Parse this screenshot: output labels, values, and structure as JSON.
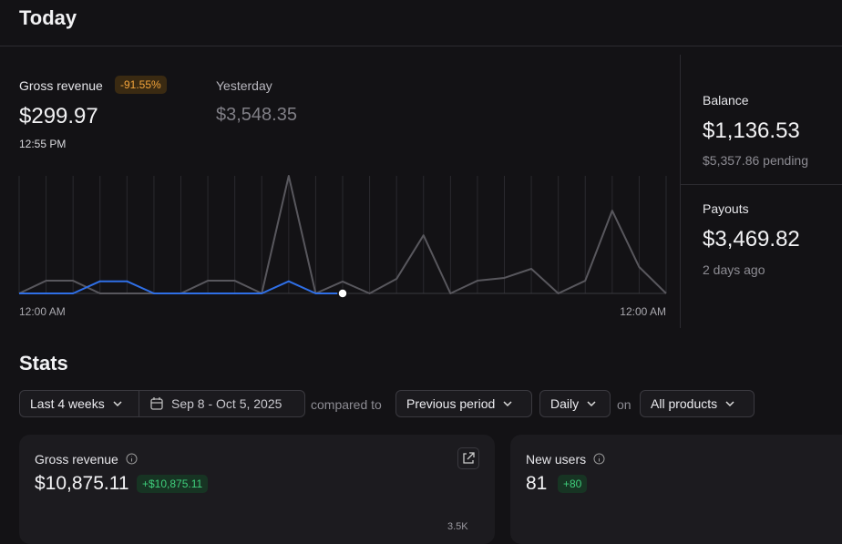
{
  "header": {
    "title": "Today"
  },
  "gross_revenue": {
    "label": "Gross revenue",
    "change": "-91.55%",
    "value": "$299.97",
    "time": "12:55 PM"
  },
  "yesterday": {
    "label": "Yesterday",
    "value": "$3,548.35"
  },
  "balance": {
    "label": "Balance",
    "value": "$1,136.53",
    "pending": "$5,357.86 pending"
  },
  "payouts": {
    "label": "Payouts",
    "value": "$3,469.82",
    "when": "2 days ago"
  },
  "chart_data": {
    "type": "line",
    "categories": [
      "12:00 AM",
      null,
      null,
      null,
      null,
      null,
      null,
      null,
      null,
      null,
      null,
      null,
      null,
      null,
      null,
      null,
      null,
      null,
      null,
      null,
      null,
      null,
      null,
      null,
      "12:00 AM"
    ],
    "series": [
      {
        "color": "#2f6fe6",
        "values": [
          0,
          0,
          0,
          100,
          100,
          0,
          0,
          0,
          0,
          0,
          100,
          0,
          0,
          null,
          null,
          null,
          null,
          null,
          null,
          null,
          null,
          null,
          null,
          null,
          null
        ]
      },
      {
        "color": "#58575d",
        "values": [
          0,
          105,
          105,
          0,
          0,
          0,
          0,
          105,
          105,
          0,
          970,
          0,
          98,
          0,
          120,
          480,
          0,
          105,
          128,
          203,
          0,
          105,
          683,
          218,
          0
        ]
      }
    ],
    "ylim": [
      0,
      970
    ]
  },
  "stats": {
    "title": "Stats",
    "filters": {
      "range": "Last 4 weeks",
      "dates": "Sep 8 - Oct 5, 2025",
      "compared_to": "compared to",
      "period": "Previous period",
      "interval": "Daily",
      "on": "on",
      "products": "All products"
    },
    "cards": [
      {
        "label": "Gross revenue",
        "value": "$10,875.11",
        "change": "+$10,875.11",
        "axis_label": "3.5K"
      },
      {
        "label": "New users",
        "value": "81",
        "change": "+80"
      }
    ]
  }
}
